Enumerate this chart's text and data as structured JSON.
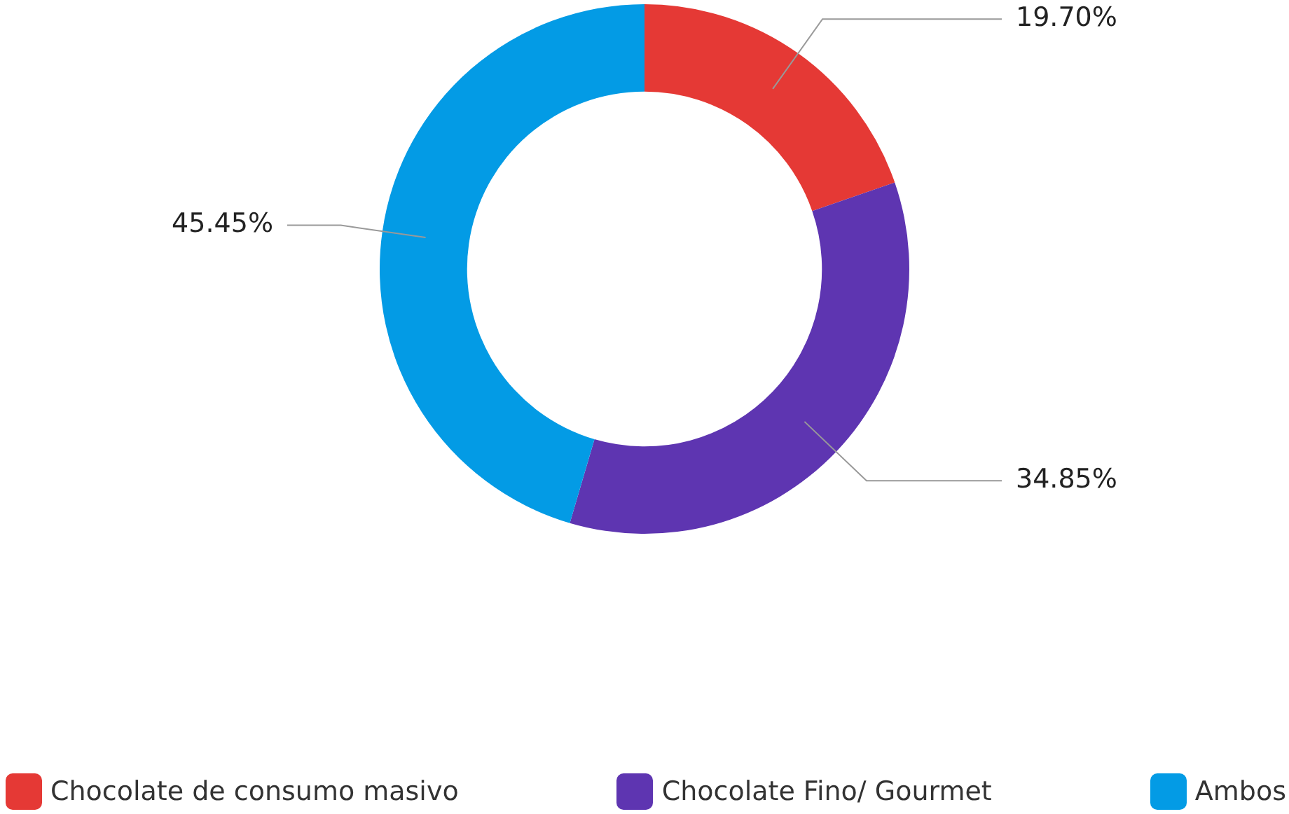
{
  "chart_data": {
    "type": "donut",
    "categories": [
      "Chocolate de consumo masivo",
      "Chocolate Fino/ Gourmet",
      "Ambos"
    ],
    "values": [
      19.7,
      34.85,
      45.45
    ],
    "colors": [
      "#e53935",
      "#5e35b1",
      "#039be5"
    ],
    "value_labels": [
      "19.70%",
      "34.85%",
      "45.45%"
    ],
    "legend": "bottom"
  }
}
